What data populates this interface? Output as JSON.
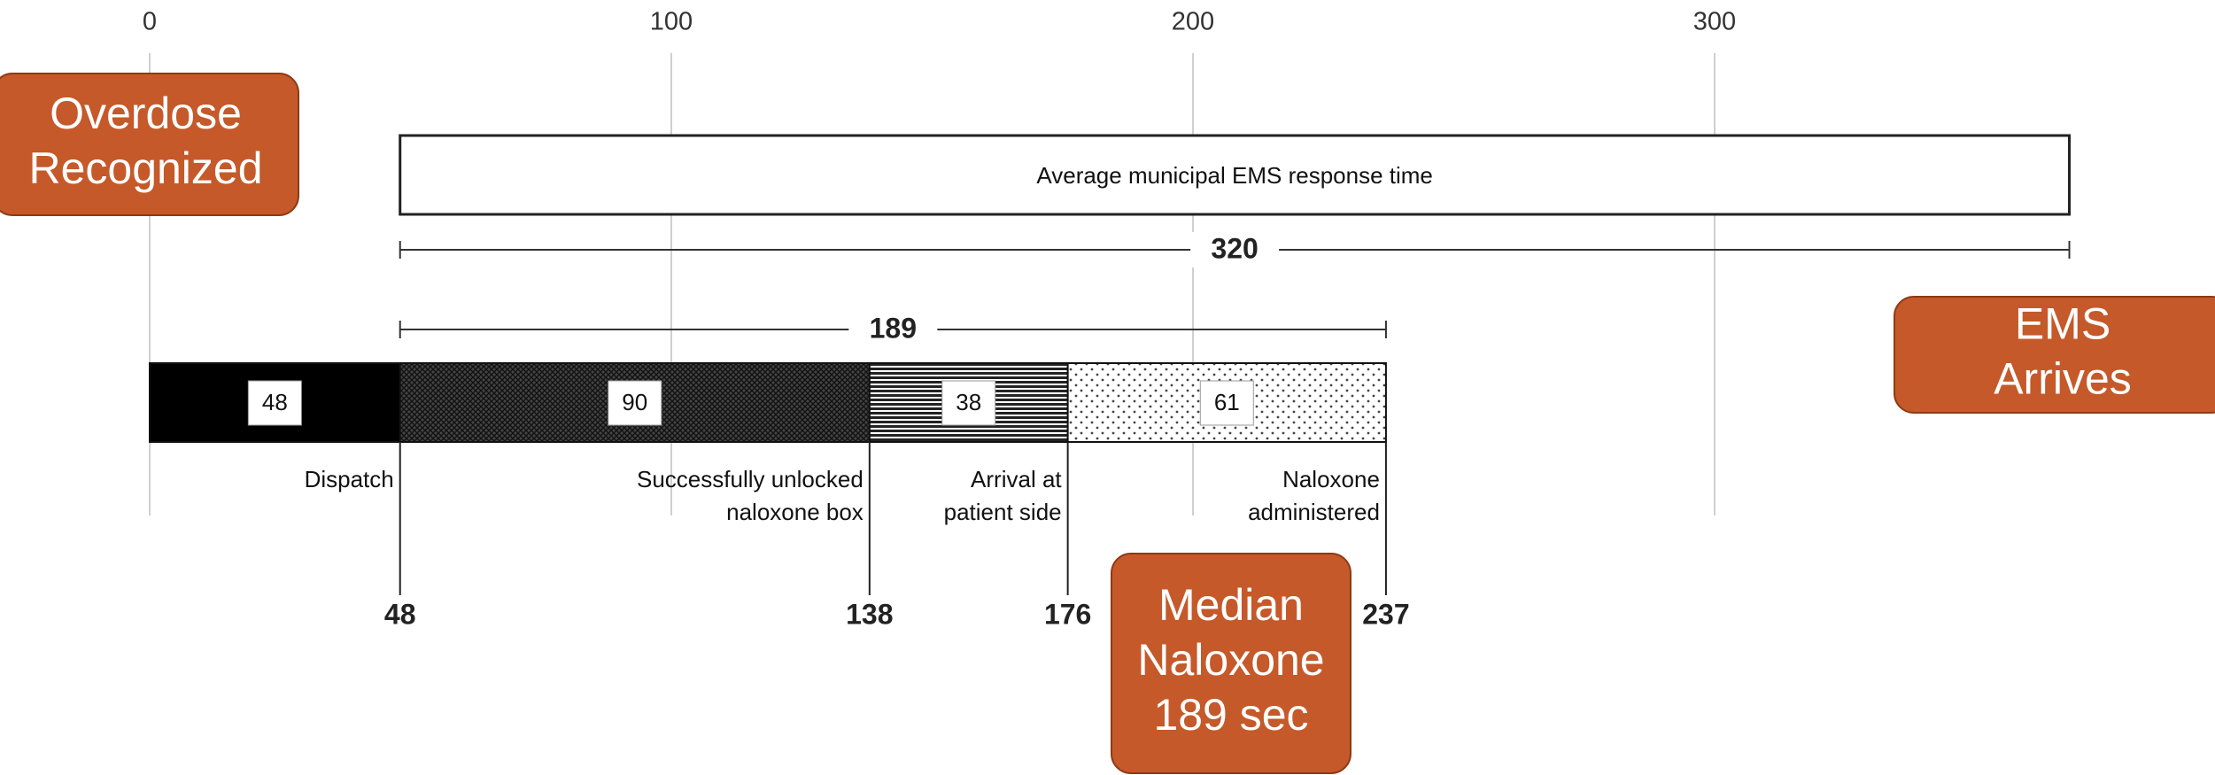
{
  "chart_data": {
    "type": "timeline",
    "xlim": [
      0,
      300
    ],
    "xticks": [
      0,
      100,
      200,
      300
    ],
    "grid": true,
    "segments": [
      {
        "value": 48,
        "pattern": "solid"
      },
      {
        "value": 90,
        "pattern": "crosshatch"
      },
      {
        "value": 38,
        "pattern": "lines"
      },
      {
        "value": 61,
        "pattern": "dots"
      }
    ],
    "milestones": [
      {
        "value": 48,
        "lines": [
          "Dispatch"
        ]
      },
      {
        "value": 138,
        "lines": [
          "Successfully unlocked",
          "naloxone box"
        ]
      },
      {
        "value": 176,
        "lines": [
          "Arrival at",
          "patient side"
        ]
      },
      {
        "value": 237,
        "lines": [
          "Naloxone",
          "administered"
        ]
      }
    ],
    "ems_box": {
      "start": 48,
      "value": 320,
      "label": "Average municipal EMS response time"
    },
    "spans": [
      {
        "start": 48,
        "value": 320
      },
      {
        "start": 48,
        "value": 189
      }
    ],
    "callouts": [
      {
        "lines": [
          "Overdose",
          "Recognized"
        ]
      },
      {
        "lines": [
          "EMS",
          "Arrives"
        ]
      },
      {
        "lines": [
          "Median",
          "Naloxone",
          "189 sec"
        ]
      }
    ]
  }
}
